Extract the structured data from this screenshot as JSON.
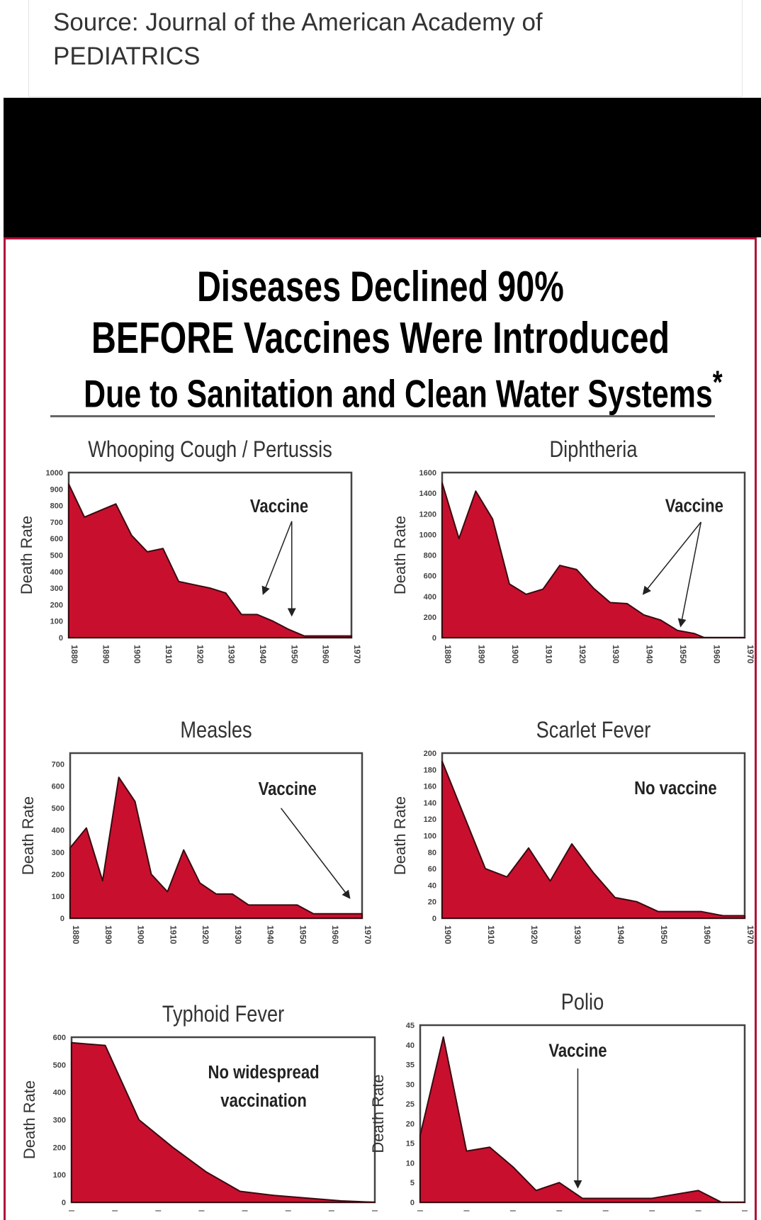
{
  "source": {
    "line1": "Source: Journal of the American Academy of",
    "line2": "PEDIATRICS"
  },
  "headline": {
    "line1": "Diseases Declined 90%",
    "line2": "BEFORE Vaccines Were Introduced",
    "line3": "Due to Sanitation and Clean Water Systems",
    "asterisk": "*"
  },
  "colors": {
    "fill": "#c8102e",
    "outline": "#3a0a10",
    "border": "#b0123a"
  },
  "chart_data": [
    {
      "type": "area",
      "title": "Whooping Cough / Pertussis",
      "ylabel": "Death Rate",
      "x": [
        1880,
        1885,
        1890,
        1895,
        1900,
        1905,
        1910,
        1915,
        1920,
        1925,
        1930,
        1935,
        1940,
        1945,
        1950,
        1955,
        1960,
        1965,
        1970
      ],
      "values": [
        930,
        730,
        770,
        810,
        620,
        520,
        540,
        340,
        320,
        300,
        270,
        140,
        140,
        100,
        50,
        10,
        10,
        10,
        10
      ],
      "xlim": [
        1880,
        1970
      ],
      "ylim": [
        0,
        1000
      ],
      "xticks": [
        "1880",
        "1890",
        "1900",
        "1910",
        "1920",
        "1930",
        "1940",
        "1950",
        "1960",
        "1970"
      ],
      "yticks": [
        "0",
        "100",
        "200",
        "300",
        "400",
        "500",
        "600",
        "700",
        "800",
        "900",
        "1000"
      ],
      "annotation": {
        "text": [
          "Vaccine"
        ],
        "at": [
          1947,
          760
        ],
        "from": [
          1951,
          705
        ],
        "targets": [
          [
            1942,
            270
          ],
          [
            1951,
            140
          ]
        ]
      }
    },
    {
      "type": "area",
      "title": "Diphtheria",
      "ylabel": "Death Rate",
      "x": [
        1880,
        1885,
        1890,
        1895,
        1900,
        1905,
        1910,
        1915,
        1920,
        1925,
        1930,
        1935,
        1940,
        1945,
        1950,
        1955,
        1958,
        1960,
        1965,
        1970
      ],
      "values": [
        1500,
        960,
        1420,
        1150,
        520,
        420,
        470,
        700,
        660,
        480,
        340,
        330,
        220,
        170,
        70,
        40,
        0,
        0,
        0,
        0
      ],
      "xlim": [
        1880,
        1970
      ],
      "ylim": [
        0,
        1600
      ],
      "xticks": [
        "1880",
        "1890",
        "1900",
        "1910",
        "1920",
        "1930",
        "1940",
        "1950",
        "1960",
        "1970"
      ],
      "yticks": [
        "0",
        "200",
        "400",
        "600",
        "800",
        "1000",
        "1200",
        "1400",
        "1600"
      ],
      "annotation": {
        "text": [
          "Vaccine"
        ],
        "at": [
          1955,
          1220
        ],
        "from": [
          1957,
          1120
        ],
        "targets": [
          [
            1940,
            430
          ],
          [
            1951,
            120
          ]
        ]
      }
    },
    {
      "type": "area",
      "title": "Measles",
      "ylabel": "Death Rate",
      "x": [
        1880,
        1885,
        1890,
        1895,
        1900,
        1905,
        1910,
        1915,
        1920,
        1925,
        1930,
        1935,
        1940,
        1945,
        1950,
        1955,
        1960,
        1965,
        1970
      ],
      "values": [
        320,
        410,
        170,
        640,
        530,
        200,
        120,
        310,
        160,
        110,
        110,
        60,
        60,
        60,
        60,
        20,
        20,
        20,
        20
      ],
      "xlim": [
        1880,
        1970
      ],
      "ylim": [
        0,
        750
      ],
      "xticks": [
        "1880",
        "1890",
        "1900",
        "1910",
        "1920",
        "1930",
        "1940",
        "1950",
        "1960",
        "1970"
      ],
      "yticks": [
        "0",
        "100",
        "200",
        "300",
        "400",
        "500",
        "600",
        "700"
      ],
      "annotation": {
        "text": [
          "Vaccine"
        ],
        "at": [
          1947,
          560
        ],
        "from": [
          1945,
          500
        ],
        "targets": [
          [
            1966,
            95
          ]
        ]
      }
    },
    {
      "type": "area",
      "title": "Scarlet Fever",
      "ylabel": "Death Rate",
      "x": [
        1900,
        1905,
        1910,
        1915,
        1920,
        1925,
        1930,
        1935,
        1940,
        1945,
        1950,
        1955,
        1960,
        1965,
        1970
      ],
      "values": [
        190,
        125,
        60,
        50,
        85,
        45,
        90,
        55,
        25,
        20,
        8,
        8,
        8,
        3,
        3
      ],
      "xlim": [
        1900,
        1970
      ],
      "ylim": [
        0,
        200
      ],
      "xticks": [
        "1900",
        "1910",
        "1920",
        "1930",
        "1940",
        "1950",
        "1960",
        "1970"
      ],
      "yticks": [
        "0",
        "20",
        "40",
        "60",
        "80",
        "100",
        "120",
        "140",
        "160",
        "180",
        "200"
      ],
      "annotation": {
        "text": [
          "No vaccine"
        ],
        "at": [
          1954,
          150
        ],
        "targets": []
      }
    },
    {
      "type": "area",
      "title": "Typhoid Fever",
      "ylabel": "Death Rate",
      "values": [
        580,
        570,
        300,
        200,
        110,
        40,
        25,
        15,
        5,
        0
      ],
      "ylim": [
        0,
        600
      ],
      "yticks": [
        "0",
        "100",
        "200",
        "300",
        "400",
        "500",
        "600"
      ],
      "annotation": {
        "text": [
          "No widespread",
          "vaccination"
        ],
        "at": [
          5.7,
          450
        ],
        "targets": []
      }
    },
    {
      "type": "area",
      "title": "Polio",
      "ylabel": "Death Rate",
      "values": [
        17,
        42,
        13,
        14,
        9,
        3,
        5,
        1,
        1,
        1,
        1,
        2,
        3,
        0,
        0
      ],
      "ylim": [
        0,
        45
      ],
      "yticks": [
        "0",
        "5",
        "10",
        "15",
        "20",
        "25",
        "30",
        "35",
        "40",
        "45"
      ],
      "annotation": {
        "text": [
          "Vaccine"
        ],
        "at": [
          6.8,
          37
        ],
        "from": [
          6.8,
          34
        ],
        "targets": [
          [
            6.8,
            4
          ]
        ]
      }
    }
  ]
}
